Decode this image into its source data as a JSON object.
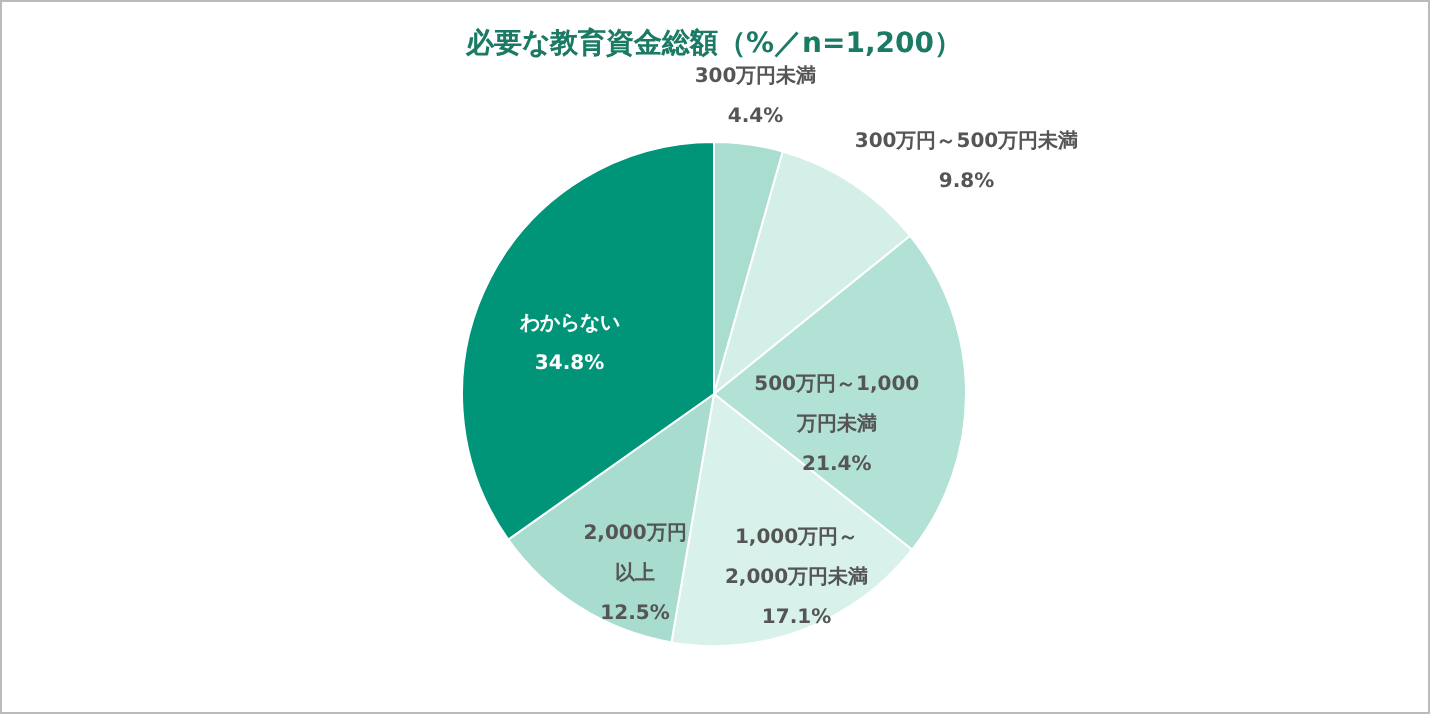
{
  "chart_data": {
    "type": "pie",
    "title": "必要な教育資金総額（%／n=1,200）",
    "categories": [
      "300万円未満",
      "300万円～500万円未満",
      "500万円～1,000万円未満",
      "1,000万円～2,000万円未満",
      "2,000万円以上",
      "わからない"
    ],
    "values": [
      4.4,
      9.8,
      21.4,
      17.1,
      12.5,
      34.8
    ],
    "colors": [
      "#a9ddd0",
      "#d4eee8",
      "#b2e1d5",
      "#d8f1eb",
      "#a7dccf",
      "#009479"
    ],
    "value_labels": [
      "4.4%",
      "9.8%",
      "21.4%",
      "17.1%",
      "12.5%",
      "34.8%"
    ]
  }
}
